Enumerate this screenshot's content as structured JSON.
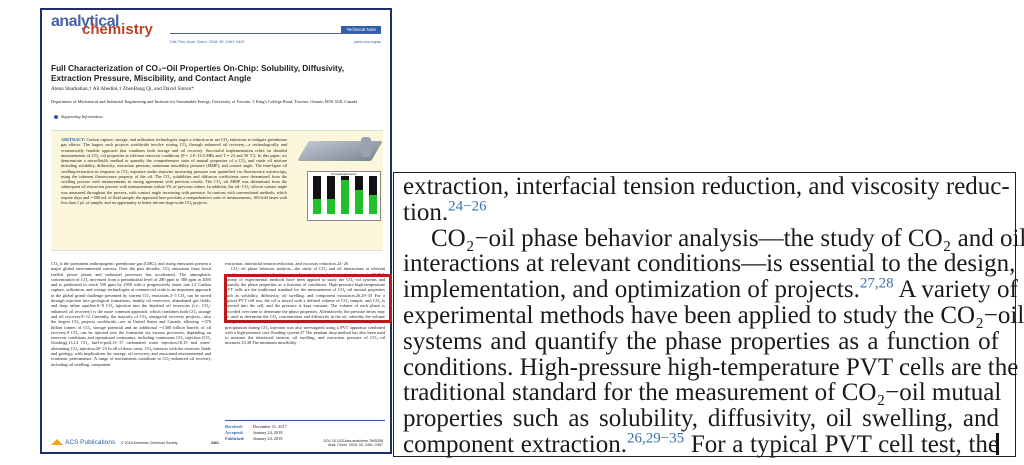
{
  "journal": {
    "logo_line1": "analytical",
    "logo_line2": "chemistry",
    "article_type": "Technical Note",
    "cite": "Cite This: Anal. Chem. 2018, 90, 2461−2467",
    "url": "pubs.acs.org/ac"
  },
  "article": {
    "title": "Full Characterization of CO₂−Oil Properties On-Chip: Solubility, Diffusivity, Extraction Pressure, Miscibility, and Contact Angle",
    "authors": "Atena Sharbatian,† Ali Abedini,† ZhenBang Qi, and David Sinton*",
    "affiliation": "Department of Mechanical and Industrial Engineering and Institute for Sustainable Energy, University of Toronto, 5 King's College Road, Toronto, Ontario M5S 3G8, Canada",
    "supporting_info": "Supporting Information",
    "abstract_label": "ABSTRACT:",
    "abstract": "Carbon capture, storage, and utilization technologies target a reduction in net CO₂ emissions to mitigate greenhouse gas effects. The largest such projects worldwide involve storing CO₂ through enhanced oil recovery—a technologically and economically feasible approach that combines both storage and oil recovery. Successful implementation relies on detailed measurements of CO₂−oil properties at relevant reservoir conditions (P = 2.0−13.0 MPa and T = 23 and 50 °C). In this paper, we demonstrate a microfluidic method to quantify the comprehensive suite of mutual properties of a CO₂ and crude oil mixture including solubility, diffusivity, extraction pressure, minimum miscibility pressure (MMP), and contact angle. The time-lapse oil swelling/extraction in response to CO₂ exposure under stepwise increasing pressure was quantified via fluorescence microscopy, using the inherent fluorescence property of the oil. The CO₂ solubilities and diffusion coefficients were determined from the swelling process with measurements in strong agreement with previous results. The CO₂−oil MMP was determined from the subsequent oil extraction process with measurements within 5% of previous values. In addition, the oil−CO₂−silicon contact angle was measured throughout the process, with contact angle increasing with pressure. In contrast with conventional methods, which require days and ∼500 mL of fluid sample, the approach here provides a comprehensive suite of measurements, 100-fold faster with less than 1 μL of sample, and an opportunity to better inform large-scale CO₂ projects.",
    "toc_chart_title": "Oil Swelling/Extraction",
    "toc_bar_fill_fractions": [
      0.4,
      0.4,
      0.9,
      0.62,
      0.5
    ],
    "left_column": "CO₂ is the prominent anthropogenic greenhouse gas (GHG), and rising emissions present a major global environmental stressor. Over the past decades, CO₂ emissions from fossil fuelled power plants and industrial processes has accelerated. The atmospheric concentration of CO₂ increased from a preindustrial level of 280 ppm to 380 ppm in 2005 and is predicated to reach 550 ppm by 2050 with a progressively faster rate.1,2 Carbon capture, utilization, and storage technologies at commercial scale is an important approach in the global grand challenge presented by current CO₂ emissions.3−5 CO₂ can be stored through injection into geological formations, mainly oil reservoirs, abandoned gas fields, and deep saline aquifers.6−8 CO₂ injection into the depleted oil reservoirs (i.e., CO₂-enhanced oil recovery) is the more common approach, which combines both CO₂ storage and oil recovery.9−12 Currently, the majority of CO₂ storage/oil recovery projects—also the largest CO₂ projects worldwide—are in United States and Canada, allowing ∼370 billion tonnes of CO₂ storage potential and an additional ∼1300 billion barrels of oil recovery.9 CO₂ can be injected into the formation via various processes, depending on reservoir conditions and operational constraints, including continuous CO₂ injection (CO₂ flooding),13,14 CO₂ huff-n-puff,15−17 carbonated water injection,18,19 and water-alternating CO₂ injection.20−23 In all of these cases, CO₂ interacts with the reservoir fluids and geology, with implications for storage, oil recovery, and associated environmental and economic performance. A range of mechanisms contribute to CO₂-enhanced oil recovery including oil swelling, component",
    "right_column_p1": "extraction, interfacial tension reduction, and viscosity reduction.24−26",
    "right_column_p2": "CO₂−oil phase behavior analysis—the study of CO₂ and oil interactions at relevant conditions—is essential to the design, implementation, and optimization of projects.27,28 A variety of experimental methods have been applied to study the CO₂−oil systems and quantify the phase properties as a function of conditions. High-pressure high-temperature PVT cells are the traditional standard for the measurement of CO₂−oil mutual properties such as solubility, diffusivity, oil swelling, and component extraction.26,29−35 For a typical PVT cell test, the oil is mixed with a defined volume of CO₂ sample, and CO₂ is injected into the cell, and the pressure is kept constant. The volume of each phase is recorded over time to determine the phase properties. Alternatively, the pressure decay may be used to determine the CO₂ concentration and diffusivity in the oil, whereby the volume is kept constant in the PVT cell, and the pressure is monitored over time.32,36 Asphaltene precipitation during CO₂ injection was also investigated using a PVT apparatus combined with a high-pressure core flooding system.37 The pendant drop method has also been used to measure the interfacial tension, oil swelling, and extraction pressure of CO₂−oil mixtures.33,38 The minimum miscibility",
    "dates": [
      {
        "label": "Received:",
        "value": "December 21, 2017"
      },
      {
        "label": "Accepted:",
        "value": "January 24, 2018"
      },
      {
        "label": "Published:",
        "value": "January 24, 2018"
      }
    ],
    "footer": {
      "publisher": "ACS Publications",
      "copyright": "© 2018 American Chemical Society",
      "page": "2461",
      "doi": "DOI: 10.1021/acs.analchem.7b05358",
      "citation": "Anal. Chem. 2018, 90, 2461−2467"
    }
  },
  "highlight_color": "#c01818",
  "inset": {
    "lines": [
      [
        {
          "t": "extraction, interfacial tension reduction, and viscosity reduc-"
        }
      ],
      [
        {
          "t": "tion."
        },
        {
          "sup": "24−26"
        }
      ],
      [
        {
          "t": "CO₂−oil phase behavior analysis—the study of CO₂ and oil"
        }
      ],
      [
        {
          "t": "interactions at relevant conditions—is essential to the design,"
        }
      ],
      [
        {
          "t": "implementation, and optimization of projects."
        },
        {
          "sup": "27,28"
        },
        {
          "t": " A variety of"
        }
      ],
      [
        {
          "t": "experimental methods have been applied to study the CO₂−oil"
        }
      ],
      [
        {
          "t": "systems and quantify the phase properties as a function of"
        }
      ],
      [
        {
          "t": "conditions. High-pressure high-temperature PVT cells are the"
        }
      ],
      [
        {
          "t": "traditional standard for the measurement of CO₂−oil mutual"
        }
      ],
      [
        {
          "t": "properties such as solubility, diffusivity, oil swelling, and"
        }
      ],
      [
        {
          "t": "component extraction."
        },
        {
          "sup": "26,29−35"
        },
        {
          "t": " For a typical PVT cell test, the"
        }
      ]
    ]
  }
}
